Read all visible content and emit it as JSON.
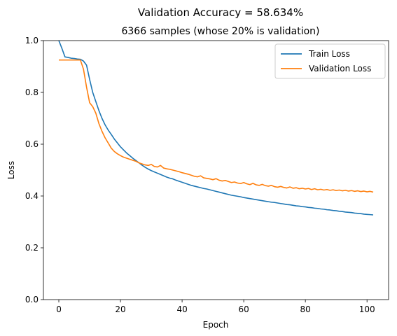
{
  "chart_data": {
    "type": "line",
    "title": "Validation Accuracy = 58.634%",
    "subtitle": "6366 samples (whose 20% is validation)",
    "xlabel": "Epoch",
    "ylabel": "Loss",
    "xlim": [
      -5,
      107
    ],
    "ylim": [
      0.0,
      1.0
    ],
    "x_ticks": [
      0,
      20,
      40,
      60,
      80,
      100
    ],
    "x_tick_labels": [
      "0",
      "20",
      "40",
      "60",
      "80",
      "100"
    ],
    "y_ticks": [
      0.0,
      0.2,
      0.4,
      0.6,
      0.8,
      1.0
    ],
    "y_tick_labels": [
      "0.0",
      "0.2",
      "0.4",
      "0.6",
      "0.8",
      "1.0"
    ],
    "grid": false,
    "legend_position": "top-right",
    "series": [
      {
        "name": "Train Loss",
        "color": "#1f77b4",
        "values": [
          1.0,
          0.97,
          0.937,
          0.935,
          0.932,
          0.931,
          0.929,
          0.928,
          0.921,
          0.905,
          0.85,
          0.8,
          0.765,
          0.73,
          0.7,
          0.675,
          0.655,
          0.638,
          0.62,
          0.605,
          0.59,
          0.578,
          0.566,
          0.556,
          0.546,
          0.537,
          0.528,
          0.519,
          0.511,
          0.504,
          0.498,
          0.493,
          0.488,
          0.483,
          0.478,
          0.473,
          0.469,
          0.466,
          0.461,
          0.457,
          0.453,
          0.449,
          0.445,
          0.441,
          0.438,
          0.435,
          0.432,
          0.429,
          0.427,
          0.424,
          0.421,
          0.418,
          0.415,
          0.412,
          0.409,
          0.406,
          0.403,
          0.401,
          0.399,
          0.397,
          0.394,
          0.392,
          0.39,
          0.388,
          0.386,
          0.384,
          0.382,
          0.38,
          0.378,
          0.376,
          0.375,
          0.373,
          0.371,
          0.369,
          0.367,
          0.366,
          0.364,
          0.362,
          0.361,
          0.359,
          0.358,
          0.356,
          0.355,
          0.353,
          0.352,
          0.35,
          0.349,
          0.347,
          0.346,
          0.344,
          0.343,
          0.341,
          0.34,
          0.338,
          0.337,
          0.336,
          0.334,
          0.333,
          0.332,
          0.33,
          0.329,
          0.328,
          0.327
        ]
      },
      {
        "name": "Validation Loss",
        "color": "#ff7f0e",
        "values": [
          0.925,
          0.925,
          0.925,
          0.925,
          0.925,
          0.925,
          0.925,
          0.925,
          0.89,
          0.82,
          0.76,
          0.745,
          0.72,
          0.68,
          0.65,
          0.625,
          0.605,
          0.585,
          0.572,
          0.563,
          0.556,
          0.55,
          0.546,
          0.542,
          0.538,
          0.534,
          0.528,
          0.524,
          0.52,
          0.518,
          0.522,
          0.514,
          0.512,
          0.518,
          0.508,
          0.505,
          0.503,
          0.5,
          0.497,
          0.494,
          0.49,
          0.487,
          0.484,
          0.48,
          0.476,
          0.474,
          0.478,
          0.47,
          0.468,
          0.466,
          0.463,
          0.467,
          0.461,
          0.458,
          0.46,
          0.456,
          0.452,
          0.454,
          0.45,
          0.448,
          0.452,
          0.447,
          0.444,
          0.449,
          0.443,
          0.441,
          0.445,
          0.44,
          0.438,
          0.441,
          0.436,
          0.434,
          0.437,
          0.433,
          0.431,
          0.435,
          0.43,
          0.432,
          0.428,
          0.43,
          0.427,
          0.429,
          0.425,
          0.428,
          0.424,
          0.426,
          0.423,
          0.425,
          0.422,
          0.424,
          0.421,
          0.423,
          0.42,
          0.422,
          0.419,
          0.421,
          0.418,
          0.42,
          0.417,
          0.419,
          0.416,
          0.418,
          0.415
        ]
      }
    ]
  }
}
